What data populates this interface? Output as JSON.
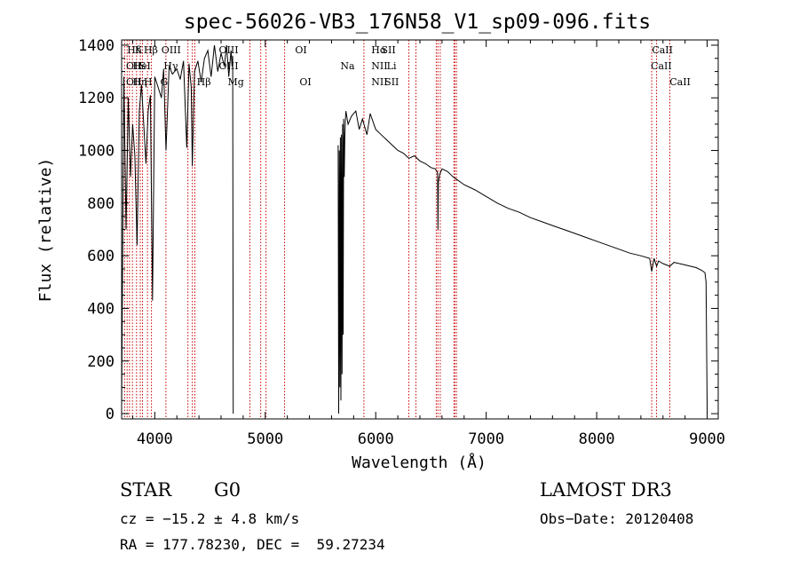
{
  "chart_data": {
    "type": "line",
    "title": "spec-56026-VB3_176N58_V1_sp09-096.fits",
    "xlabel": "Wavelength (Å)",
    "ylabel": "Flux (relative)",
    "xlim": [
      3700,
      9100
    ],
    "ylim": [
      -20,
      1420
    ],
    "xticks": [
      4000,
      5000,
      6000,
      7000,
      8000,
      9000
    ],
    "yticks": [
      0,
      200,
      400,
      600,
      800,
      1000,
      1200,
      1400
    ],
    "grid": false,
    "line_color": "#000000",
    "marker_color": "#cc0000",
    "series": [
      {
        "name": "flux",
        "segments": [
          {
            "x": [
              3700,
              3720,
              3740,
              3760,
              3780,
              3800,
              3820,
              3840,
              3860,
              3880,
              3900,
              3920,
              3940,
              3960,
              3980,
              4000,
              4030,
              4060,
              4080,
              4102,
              4130,
              4160,
              4200,
              4230,
              4260,
              4290,
              4310,
              4330,
              4340,
              4360,
              4390,
              4420,
              4450,
              4480,
              4510,
              4540,
              4570,
              4600,
              4630,
              4650,
              4670,
              4690,
              4700,
              4705,
              4710
            ],
            "y": [
              30,
              1280,
              700,
              1200,
              900,
              1100,
              980,
              640,
              1150,
              1250,
              1100,
              950,
              1150,
              1210,
              430,
              1280,
              1240,
              1200,
              1310,
              1000,
              1320,
              1290,
              1310,
              1270,
              1340,
              1010,
              1330,
              1240,
              940,
              1300,
              1340,
              1260,
              1350,
              1380,
              1280,
              1400,
              1300,
              1370,
              1320,
              1400,
              1280,
              1380,
              1320,
              1360,
              0
            ]
          },
          {
            "x": [
              5660,
              5665,
              5670,
              5675,
              5680,
              5685,
              5690,
              5695,
              5700,
              5705,
              5710,
              5715,
              5720,
              5725,
              5730,
              5750,
              5780,
              5820,
              5850,
              5880,
              5900,
              5920,
              5950,
              6000,
              6050,
              6100,
              6150,
              6200,
              6250,
              6300,
              6350,
              6400,
              6450,
              6500,
              6540,
              6560,
              6563,
              6567,
              6580,
              6600,
              6650,
              6700,
              6800,
              6900,
              7000,
              7100,
              7200,
              7300,
              7400,
              7500,
              7600,
              7700,
              7800,
              7900,
              8000,
              8100,
              8200,
              8300,
              8400,
              8480,
              8498,
              8520,
              8542,
              8560,
              8600,
              8662,
              8700,
              8800,
              8900,
              8950,
              8980,
              8990,
              9000
            ],
            "y": [
              1020,
              0,
              1000,
              100,
              1050,
              50,
              1060,
              150,
              1100,
              300,
              1120,
              900,
              1050,
              1110,
              1150,
              1100,
              1130,
              1150,
              1080,
              1120,
              1090,
              1060,
              1140,
              1080,
              1060,
              1040,
              1020,
              1000,
              990,
              970,
              980,
              960,
              950,
              935,
              930,
              915,
              700,
              880,
              910,
              930,
              920,
              900,
              870,
              850,
              825,
              800,
              780,
              765,
              745,
              730,
              715,
              700,
              685,
              670,
              655,
              640,
              625,
              610,
              600,
              590,
              540,
              590,
              560,
              580,
              570,
              560,
              575,
              565,
              555,
              545,
              535,
              500,
              0
            ]
          }
        ]
      }
    ],
    "lines": [
      {
        "label": "Hδ",
        "x": 3750,
        "row": 0
      },
      {
        "label": "K",
        "x": 3820,
        "row": 0
      },
      {
        "label": "Hβ",
        "x": 3900,
        "row": 0
      },
      {
        "label": "OIII",
        "x": 4060,
        "row": 0
      },
      {
        "label": "OIII",
        "x": 4580,
        "row": 0
      },
      {
        "label": "OI",
        "x": 5270,
        "row": 0
      },
      {
        "label": "Hα",
        "x": 5960,
        "row": 0
      },
      {
        "label": "SII",
        "x": 6050,
        "row": 0
      },
      {
        "label": "CaII",
        "x": 8500,
        "row": 0
      },
      {
        "label": "OII",
        "x": 3740,
        "row": 1
      },
      {
        "label": "HeI",
        "x": 3800,
        "row": 1
      },
      {
        "label": "S",
        "x": 3860,
        "row": 1
      },
      {
        "label": "Hγ",
        "x": 4080,
        "row": 1
      },
      {
        "label": "OIII",
        "x": 4580,
        "row": 1
      },
      {
        "label": "Na",
        "x": 5680,
        "row": 1
      },
      {
        "label": "NII",
        "x": 5960,
        "row": 1
      },
      {
        "label": "Li",
        "x": 6100,
        "row": 1
      },
      {
        "label": "CaII",
        "x": 8490,
        "row": 1
      },
      {
        "label": "OII",
        "x": 3740,
        "row": 2
      },
      {
        "label": "Hη",
        "x": 3800,
        "row": 2
      },
      {
        "label": "H",
        "x": 3900,
        "row": 2
      },
      {
        "label": "G",
        "x": 4050,
        "row": 2
      },
      {
        "label": "Hβ",
        "x": 4380,
        "row": 2
      },
      {
        "label": "Mg",
        "x": 4660,
        "row": 2
      },
      {
        "label": "OI",
        "x": 5310,
        "row": 2
      },
      {
        "label": "NII",
        "x": 5960,
        "row": 2
      },
      {
        "label": "SII",
        "x": 6080,
        "row": 2
      },
      {
        "label": "CaII",
        "x": 8660,
        "row": 2
      }
    ],
    "markers_x": [
      3727,
      3750,
      3771,
      3798,
      3835,
      3869,
      3889,
      3934,
      3970,
      4101,
      4300,
      4340,
      4363,
      4861,
      4959,
      5007,
      5175,
      5893,
      6300,
      6364,
      6548,
      6563,
      6584,
      6708,
      6716,
      6731,
      8498,
      8542,
      8662
    ]
  },
  "info": {
    "classification": "STAR",
    "subclass": "G0",
    "redshift": "cz = −15.2 ± 4.8 km/s",
    "coords": "RA = 177.78230, DEC =  59.27234",
    "survey": "LAMOST DR3",
    "obs_date": "Obs−Date: 20120408"
  }
}
